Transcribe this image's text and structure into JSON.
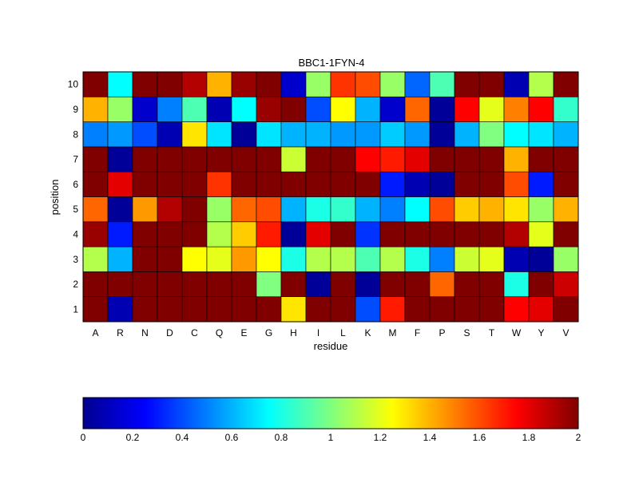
{
  "chart_data": {
    "type": "heatmap",
    "title": "BBC1-1FYN-4",
    "xlabel": "residue",
    "ylabel": "position",
    "x_categories": [
      "A",
      "R",
      "N",
      "D",
      "C",
      "Q",
      "E",
      "G",
      "H",
      "I",
      "L",
      "K",
      "M",
      "F",
      "P",
      "S",
      "T",
      "W",
      "Y",
      "V"
    ],
    "y_categories": [
      "1",
      "2",
      "3",
      "4",
      "5",
      "6",
      "7",
      "8",
      "9",
      "10"
    ],
    "value_range": [
      0,
      2
    ],
    "colormap": "jet",
    "values": [
      [
        2.0,
        0.1,
        2.0,
        2.0,
        2.0,
        2.0,
        2.0,
        2.0,
        1.3,
        2.0,
        2.0,
        0.4,
        1.7,
        2.0,
        2.0,
        2.0,
        2.0,
        1.75,
        1.8,
        2.0
      ],
      [
        2.0,
        2.0,
        2.0,
        2.0,
        2.0,
        2.0,
        2.0,
        1.0,
        2.0,
        0.05,
        2.0,
        0.05,
        2.0,
        2.0,
        1.55,
        2.0,
        2.0,
        0.8,
        2.0,
        1.85
      ],
      [
        1.1,
        0.6,
        2.0,
        2.0,
        1.25,
        1.2,
        1.45,
        1.25,
        0.8,
        1.1,
        1.1,
        0.9,
        1.1,
        0.8,
        0.5,
        1.15,
        1.2,
        0.1,
        0.05,
        1.05
      ],
      [
        1.95,
        0.3,
        2.0,
        2.0,
        2.0,
        1.1,
        1.35,
        1.7,
        0.05,
        1.8,
        2.0,
        0.35,
        2.0,
        2.0,
        2.0,
        2.0,
        2.0,
        1.9,
        1.2,
        2.0
      ],
      [
        1.55,
        0.05,
        1.45,
        1.9,
        2.0,
        1.05,
        1.55,
        1.6,
        0.6,
        0.8,
        0.85,
        0.6,
        0.5,
        0.75,
        1.6,
        1.35,
        1.4,
        1.3,
        1.05,
        1.4
      ],
      [
        2.0,
        1.8,
        2.0,
        2.0,
        2.0,
        1.65,
        2.0,
        2.0,
        2.0,
        2.0,
        2.0,
        2.0,
        0.3,
        0.1,
        0.05,
        2.0,
        2.0,
        1.6,
        0.3,
        2.0
      ],
      [
        2.0,
        0.05,
        2.0,
        2.0,
        2.0,
        2.0,
        2.0,
        2.0,
        1.15,
        2.0,
        2.0,
        1.75,
        1.7,
        1.8,
        2.0,
        2.0,
        2.0,
        1.4,
        2.0,
        2.0
      ],
      [
        0.5,
        0.55,
        0.4,
        0.1,
        1.3,
        0.7,
        0.05,
        0.7,
        0.6,
        0.6,
        0.55,
        0.55,
        0.65,
        0.55,
        0.05,
        0.6,
        1.0,
        0.75,
        0.7,
        0.6
      ],
      [
        1.4,
        1.05,
        0.15,
        0.5,
        0.9,
        0.1,
        0.75,
        1.95,
        2.0,
        0.4,
        1.25,
        0.6,
        0.15,
        1.55,
        0.05,
        1.75,
        1.2,
        1.5,
        1.75,
        0.85
      ],
      [
        2.0,
        0.75,
        2.0,
        2.0,
        1.9,
        1.4,
        1.95,
        2.0,
        0.15,
        1.05,
        1.65,
        1.6,
        1.05,
        0.45,
        0.9,
        2.0,
        2.0,
        0.1,
        1.1,
        2.0
      ]
    ],
    "colorbar": {
      "ticks": [
        "0",
        "0.2",
        "0.4",
        "0.6",
        "0.8",
        "1",
        "1.2",
        "1.4",
        "1.6",
        "1.8",
        "2"
      ]
    }
  }
}
